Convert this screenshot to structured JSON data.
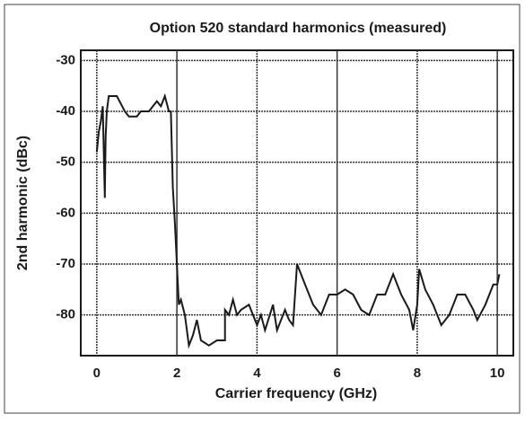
{
  "chart_data": {
    "type": "line",
    "title": "Option 520 standard harmonics (measured)",
    "xlabel": "Carrier frequency (GHz)",
    "ylabel": "2nd harmonic (dBc)",
    "xlim": [
      -0.4,
      10.4
    ],
    "ylim": [
      -88,
      -28
    ],
    "xticks": [
      0,
      2,
      4,
      6,
      8,
      10
    ],
    "yticks": [
      -30,
      -40,
      -50,
      -60,
      -70,
      -80
    ],
    "grid": true,
    "series": [
      {
        "color": "#1a1a1a",
        "x": [
          0.0,
          0.05,
          0.1,
          0.15,
          0.2,
          0.22,
          0.25,
          0.3,
          0.5,
          0.7,
          0.8,
          1.0,
          1.1,
          1.3,
          1.5,
          1.6,
          1.7,
          1.8,
          1.85,
          1.9,
          1.95,
          2.0,
          2.05,
          2.1,
          2.2,
          2.3,
          2.4,
          2.5,
          2.6,
          2.8,
          3.0,
          3.2,
          3.2,
          3.3,
          3.4,
          3.5,
          3.6,
          3.8,
          4.0,
          4.1,
          4.2,
          4.4,
          4.5,
          4.7,
          4.8,
          4.9,
          5.0,
          5.2,
          5.4,
          5.6,
          5.8,
          6.0,
          6.2,
          6.4,
          6.6,
          6.8,
          7.0,
          7.2,
          7.4,
          7.6,
          7.8,
          7.9,
          8.0,
          8.05,
          8.2,
          8.4,
          8.6,
          8.8,
          9.0,
          9.2,
          9.4,
          9.5,
          9.7,
          9.9,
          10.0,
          10.05
        ],
        "values": [
          -48,
          -44,
          -42,
          -39,
          -57,
          -45,
          -40,
          -37,
          -37,
          -40,
          -41,
          -41,
          -40,
          -40,
          -38,
          -39,
          -37,
          -40,
          -40,
          -55,
          -62,
          -70,
          -78,
          -77,
          -80,
          -86,
          -84,
          -81,
          -85,
          -86,
          -85,
          -85,
          -79,
          -80,
          -77,
          -80,
          -79,
          -78,
          -82,
          -80,
          -83,
          -78,
          -83,
          -79,
          -81,
          -82,
          -70,
          -74,
          -78,
          -80,
          -76,
          -76,
          -75,
          -76,
          -79,
          -80,
          -76,
          -76,
          -72,
          -76,
          -79,
          -83,
          -78,
          -71,
          -75,
          -78,
          -82,
          -80,
          -76,
          -76,
          -79,
          -81,
          -78,
          -74,
          -74,
          -72
        ]
      }
    ]
  }
}
